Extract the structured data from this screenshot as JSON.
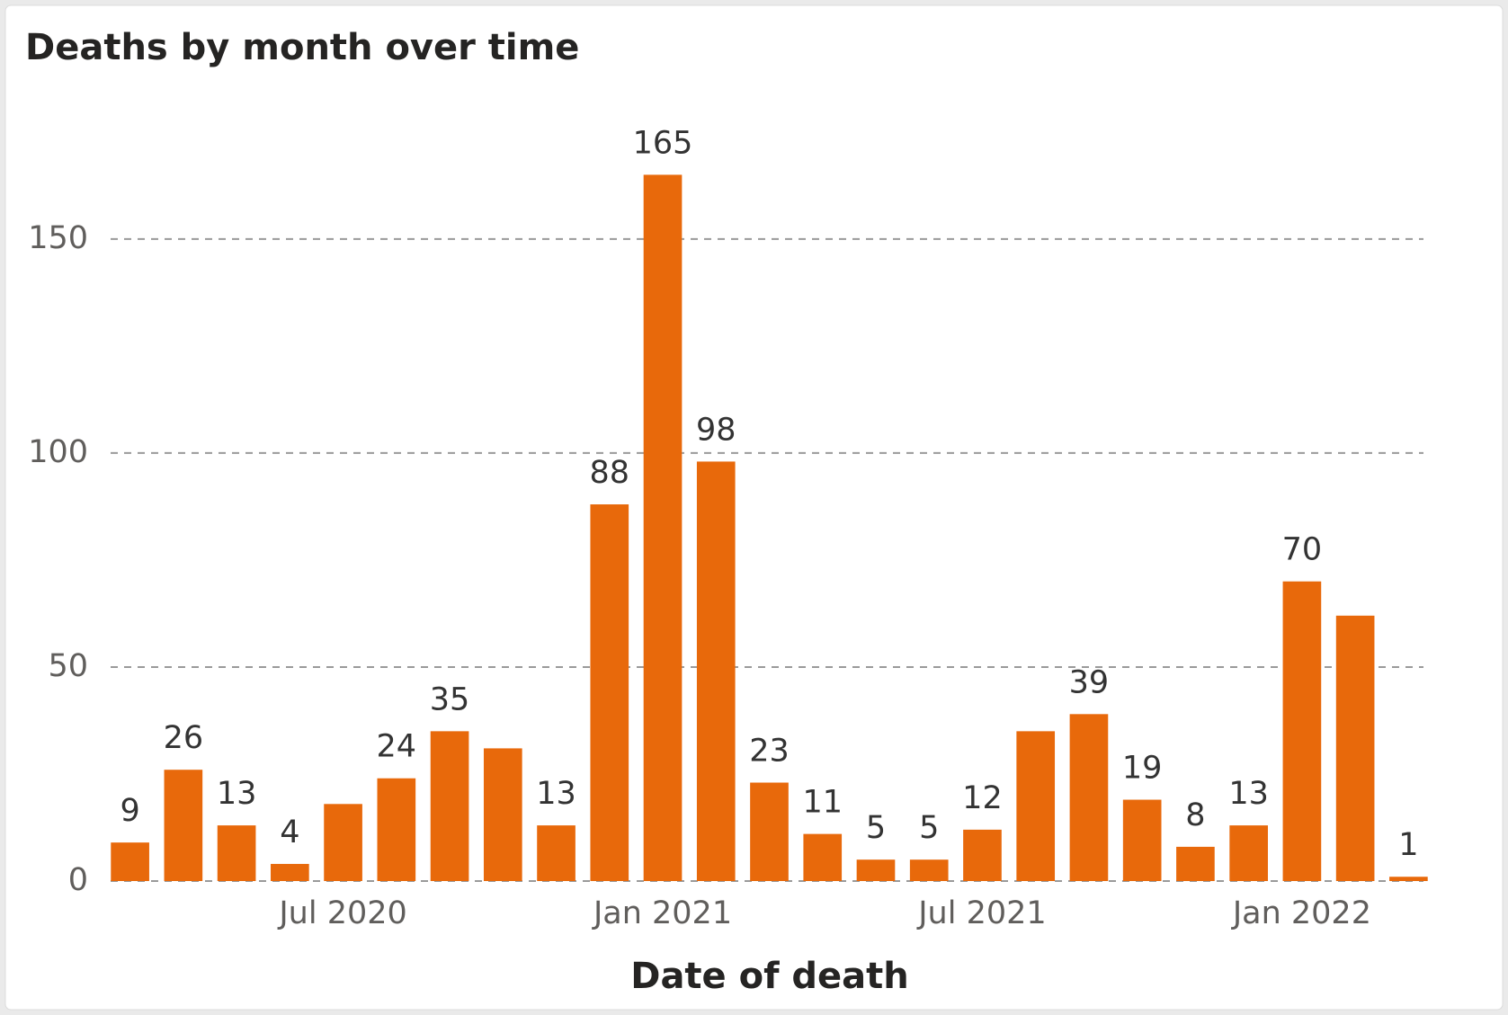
{
  "chart_data": {
    "type": "bar",
    "title": "Deaths by month over time",
    "x_label": "Date of death",
    "categories": [
      null,
      null,
      null,
      null,
      "Jul 2020",
      null,
      null,
      null,
      null,
      null,
      "Jan 2021",
      null,
      null,
      null,
      null,
      null,
      "Jul 2021",
      null,
      null,
      null,
      null,
      null,
      "Jan 2022",
      null,
      null
    ],
    "values": [
      9,
      26,
      13,
      4,
      18,
      24,
      35,
      31,
      13,
      88,
      165,
      98,
      23,
      11,
      5,
      5,
      12,
      35,
      39,
      19,
      8,
      13,
      70,
      62,
      1
    ],
    "value_labels": [
      "9",
      "26",
      "13",
      "4",
      null,
      "24",
      "35",
      null,
      "13",
      "88",
      "165",
      "98",
      "23",
      "11",
      "5",
      "5",
      "12",
      null,
      "39",
      "19",
      "8",
      "13",
      "70",
      null,
      "1"
    ],
    "color": "#e8690b",
    "ylim": [
      0,
      180
    ],
    "yticks": [
      0,
      50,
      100,
      150
    ],
    "grid": true
  }
}
